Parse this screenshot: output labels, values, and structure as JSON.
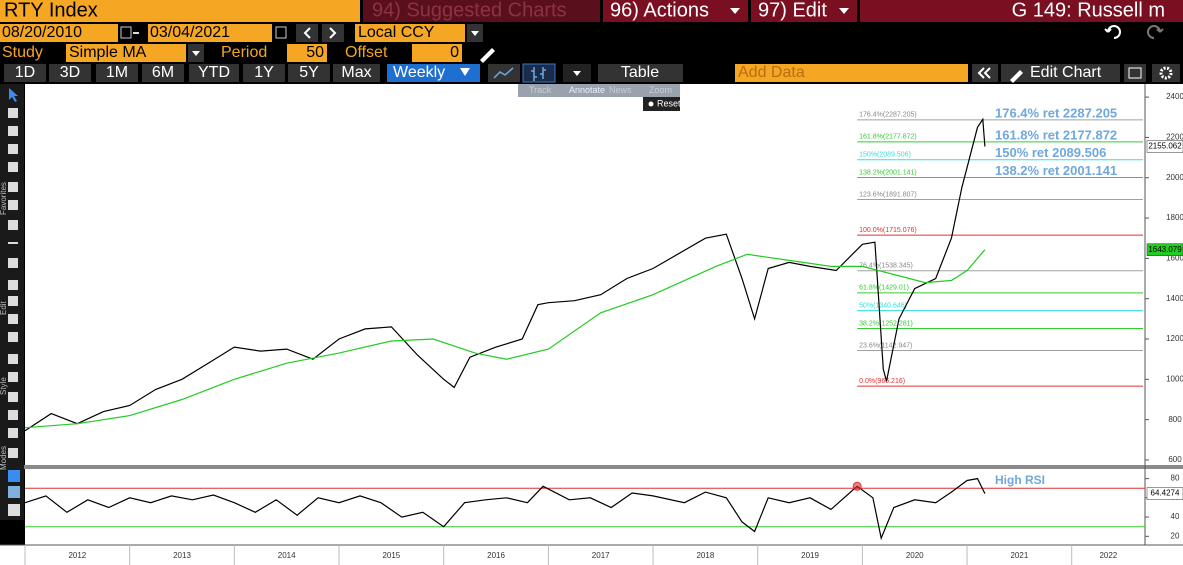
{
  "toolbar": {
    "security": "RTY Index",
    "suggested": "94) Suggested Charts",
    "actions": "96) Actions",
    "edit": "97) Edit",
    "page_title": "G 149: Russell m"
  },
  "controls": {
    "start_date": "08/20/2010",
    "end_date": "03/04/2021",
    "currency": "Local CCY",
    "study_label": "Study",
    "study": "Simple MA",
    "period_label": "Period",
    "period": 50,
    "offset_label": "Offset",
    "offset": 0
  },
  "ranges": [
    "1D",
    "3D",
    "1M",
    "6M",
    "YTD",
    "1Y",
    "5Y",
    "Max"
  ],
  "frequency": "Weekly",
  "table": "Table",
  "add_data": "Add Data",
  "edit_chart": "Edit Chart",
  "annotate_menu": [
    "Track",
    "Annotate",
    "News",
    "Zoom"
  ],
  "reset": "Reset",
  "sidebar": [
    "Favorites",
    "Edit",
    "Style",
    "Modes"
  ],
  "chart_data": [
    {
      "type": "line",
      "xlim": [
        2012,
        2022.7
      ],
      "ylim": [
        580,
        2460
      ],
      "yticks": [
        600,
        800,
        1000,
        1200,
        1400,
        1600,
        1800,
        2000,
        2200,
        2400
      ],
      "series": [
        {
          "color": "#000000",
          "x": [
            2012.0,
            2012.25,
            2012.5,
            2012.75,
            2013.0,
            2013.25,
            2013.5,
            2013.75,
            2014.0,
            2014.25,
            2014.5,
            2014.75,
            2015.0,
            2015.25,
            2015.5,
            2015.75,
            2016.0,
            2016.1,
            2016.25,
            2016.5,
            2016.75,
            2016.9,
            2017.0,
            2017.25,
            2017.5,
            2017.75,
            2018.0,
            2018.5,
            2018.7,
            2018.85,
            2018.97,
            2019.1,
            2019.3,
            2019.5,
            2019.75,
            2020.0,
            2020.12,
            2020.2,
            2020.23,
            2020.35,
            2020.5,
            2020.7,
            2020.85,
            2020.95,
            2021.1,
            2021.15,
            2021.17
          ],
          "values": [
            745,
            830,
            780,
            840,
            870,
            950,
            1000,
            1080,
            1160,
            1140,
            1150,
            1100,
            1200,
            1250,
            1260,
            1120,
            1000,
            960,
            1110,
            1160,
            1200,
            1370,
            1380,
            1390,
            1420,
            1500,
            1550,
            1700,
            1720,
            1500,
            1300,
            1550,
            1580,
            1560,
            1540,
            1670,
            1680,
            1050,
            990,
            1300,
            1450,
            1500,
            1700,
            1950,
            2250,
            2290,
            2155.062
          ]
        },
        {
          "color": "#22cc22",
          "x": [
            2012.0,
            2012.5,
            2013.0,
            2013.5,
            2014.0,
            2014.5,
            2015.0,
            2015.5,
            2015.9,
            2016.3,
            2016.6,
            2017.0,
            2017.5,
            2018.0,
            2018.6,
            2018.9,
            2019.3,
            2019.7,
            2020.0,
            2020.3,
            2020.6,
            2020.85,
            2021.0,
            2021.17
          ],
          "values": [
            760,
            780,
            820,
            900,
            1000,
            1080,
            1130,
            1190,
            1200,
            1130,
            1100,
            1150,
            1330,
            1420,
            1560,
            1620,
            1590,
            1560,
            1560,
            1520,
            1480,
            1490,
            1540,
            1643.079
          ]
        }
      ],
      "fib_start": 2019.95,
      "fib_levels": [
        {
          "label": "0.0%(966.216)",
          "value": 966.216,
          "color": "#e03030"
        },
        {
          "label": "23.6%(1142.947)",
          "value": 1142.947,
          "color": "#a0a0a0"
        },
        {
          "label": "38.2%(1252.281)",
          "value": 1252.281,
          "color": "#33cc33"
        },
        {
          "label": "50%(1340.646)",
          "value": 1340.646,
          "color": "#33dddd"
        },
        {
          "label": "61.8%(1429.01)",
          "value": 1429.01,
          "color": "#33cc33"
        },
        {
          "label": "76.4%(1538.345)",
          "value": 1538.345,
          "color": "#a0a0a0"
        },
        {
          "label": "100.0%(1715.076)",
          "value": 1715.076,
          "color": "#e03030"
        },
        {
          "label": "123.6%(1891.807)",
          "value": 1891.807,
          "color": "#a0a0a0"
        },
        {
          "label": "138.2%(2001.141)",
          "value": 2001.141,
          "color": "#33cc33",
          "callout": "138.2% ret 2001.141"
        },
        {
          "label": "150%(2089.506)",
          "value": 2089.506,
          "color": "#33dddd",
          "callout": "150% ret 2089.506"
        },
        {
          "label": "161.8%(2177.872)",
          "value": 2177.872,
          "color": "#33cc33",
          "callout": "161.8% ret 2177.872"
        },
        {
          "label": "176.4%(2287.205)",
          "value": 2287.205,
          "color": "#a0a0a0",
          "callout": "176.4% ret 2287.205"
        }
      ]
    },
    {
      "type": "line",
      "xlim": [
        2012,
        2022.7
      ],
      "ylim": [
        12,
        90
      ],
      "yticks": [
        20,
        40,
        60,
        80
      ],
      "xticks": [
        2012,
        2013,
        2014,
        2015,
        2016,
        2017,
        2018,
        2019,
        2020,
        2021,
        2022
      ],
      "annotation": "High RSI",
      "levels": [
        {
          "value": 70,
          "color": "#e03030"
        },
        {
          "value": 30,
          "color": "#33cc33"
        }
      ],
      "marker": {
        "x": 2019.95,
        "value": 72,
        "color": "#e03030"
      },
      "series": [
        {
          "color": "#000000",
          "x": [
            2012.0,
            2012.2,
            2012.4,
            2012.6,
            2012.8,
            2013.0,
            2013.2,
            2013.4,
            2013.6,
            2013.8,
            2014.0,
            2014.2,
            2014.4,
            2014.6,
            2014.8,
            2015.0,
            2015.2,
            2015.4,
            2015.6,
            2015.8,
            2016.0,
            2016.2,
            2016.4,
            2016.6,
            2016.8,
            2016.95,
            2017.2,
            2017.4,
            2017.6,
            2017.8,
            2018.0,
            2018.3,
            2018.5,
            2018.7,
            2018.85,
            2018.97,
            2019.1,
            2019.3,
            2019.5,
            2019.7,
            2019.95,
            2020.1,
            2020.18,
            2020.3,
            2020.5,
            2020.7,
            2020.85,
            2021.0,
            2021.1,
            2021.17
          ],
          "values": [
            55,
            62,
            45,
            58,
            50,
            60,
            55,
            62,
            58,
            63,
            55,
            45,
            58,
            42,
            60,
            55,
            62,
            55,
            40,
            45,
            30,
            55,
            58,
            60,
            55,
            72,
            58,
            60,
            50,
            65,
            62,
            55,
            66,
            60,
            35,
            25,
            60,
            55,
            60,
            48,
            72,
            60,
            18,
            50,
            58,
            55,
            66,
            78,
            80,
            64.4274
          ]
        }
      ]
    }
  ]
}
